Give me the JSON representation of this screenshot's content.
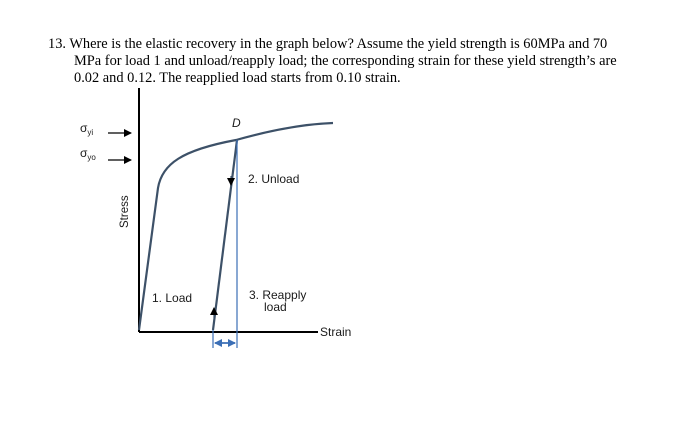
{
  "question": {
    "number": "13.",
    "lines": [
      "Where is the elastic recovery in the graph below? Assume the yield strength is 60MPa and 70",
      "MPa for load 1 and unload/reapply load; the corresponding strain for these yield strength’s are",
      "0.02 and 0.12. The reapplied load starts from 0.10 strain."
    ]
  },
  "figure": {
    "yield_i_symbol": "σ",
    "yield_i_subscript": "yi",
    "yield_o_symbol": "σ",
    "yield_o_subscript": "yo",
    "point_label": "D",
    "unload_label": "2. Unload",
    "load_label": "1. Load",
    "reapply_line1": "3. Reapply",
    "reapply_line2": "load",
    "x_axis_label": "Strain",
    "y_axis_label": "Stress",
    "colors": {
      "curve": "#3d5168",
      "dashed": "#3b6fb6",
      "arrow": "#3b6fb6",
      "axis": "#000000"
    }
  }
}
